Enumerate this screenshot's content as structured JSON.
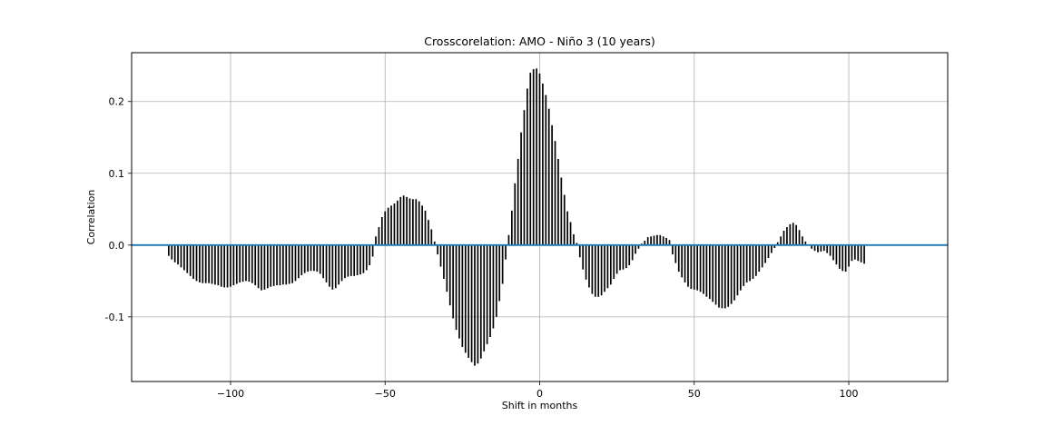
{
  "chart_data": {
    "type": "bar",
    "title": "Crosscorelation: AMO - Niño 3 (10 years)",
    "xlabel": "Shift in months",
    "ylabel": "Correlation",
    "xlim": [
      -132,
      132
    ],
    "ylim": [
      -0.19,
      0.268
    ],
    "xticks": [
      -100,
      -50,
      0,
      50,
      100
    ],
    "xtick_labels": [
      "−100",
      "−50",
      "0",
      "50",
      "100"
    ],
    "yticks": [
      -0.1,
      0.0,
      0.1,
      0.2
    ],
    "ytick_labels": [
      "-0.1",
      "0.0",
      "0.1",
      "0.2"
    ],
    "grid": true,
    "bar_color": "#000000",
    "baseline_color": "#1f77b4",
    "grid_color": "#b0b0b0",
    "x_start": -120,
    "values": [
      -0.015,
      -0.02,
      -0.024,
      -0.027,
      -0.031,
      -0.035,
      -0.039,
      -0.043,
      -0.047,
      -0.05,
      -0.052,
      -0.053,
      -0.053,
      -0.053,
      -0.054,
      -0.055,
      -0.056,
      -0.058,
      -0.059,
      -0.059,
      -0.058,
      -0.056,
      -0.054,
      -0.052,
      -0.051,
      -0.05,
      -0.051,
      -0.053,
      -0.056,
      -0.06,
      -0.063,
      -0.062,
      -0.06,
      -0.058,
      -0.057,
      -0.056,
      -0.056,
      -0.055,
      -0.055,
      -0.054,
      -0.053,
      -0.05,
      -0.046,
      -0.042,
      -0.039,
      -0.037,
      -0.036,
      -0.036,
      -0.037,
      -0.04,
      -0.046,
      -0.052,
      -0.058,
      -0.062,
      -0.06,
      -0.055,
      -0.05,
      -0.046,
      -0.044,
      -0.043,
      -0.043,
      -0.042,
      -0.041,
      -0.039,
      -0.035,
      -0.028,
      -0.016,
      0.012,
      0.025,
      0.039,
      0.047,
      0.052,
      0.055,
      0.058,
      0.062,
      0.067,
      0.069,
      0.067,
      0.065,
      0.064,
      0.064,
      0.061,
      0.055,
      0.048,
      0.035,
      0.022,
      0.005,
      -0.013,
      -0.03,
      -0.047,
      -0.065,
      -0.084,
      -0.102,
      -0.118,
      -0.13,
      -0.142,
      -0.15,
      -0.157,
      -0.163,
      -0.168,
      -0.165,
      -0.158,
      -0.148,
      -0.138,
      -0.128,
      -0.116,
      -0.1,
      -0.078,
      -0.054,
      -0.02,
      0.014,
      0.048,
      0.086,
      0.12,
      0.157,
      0.188,
      0.218,
      0.24,
      0.245,
      0.246,
      0.239,
      0.225,
      0.209,
      0.19,
      0.167,
      0.145,
      0.12,
      0.094,
      0.07,
      0.047,
      0.032,
      0.015,
      0.003,
      -0.017,
      -0.034,
      -0.048,
      -0.059,
      -0.068,
      -0.072,
      -0.072,
      -0.07,
      -0.065,
      -0.06,
      -0.055,
      -0.047,
      -0.04,
      -0.035,
      -0.034,
      -0.032,
      -0.028,
      -0.021,
      -0.012,
      -0.005,
      0.002,
      0.006,
      0.011,
      0.012,
      0.013,
      0.014,
      0.014,
      0.012,
      0.01,
      0.007,
      -0.013,
      -0.025,
      -0.037,
      -0.045,
      -0.052,
      -0.058,
      -0.061,
      -0.062,
      -0.063,
      -0.065,
      -0.068,
      -0.072,
      -0.075,
      -0.079,
      -0.083,
      -0.087,
      -0.088,
      -0.088,
      -0.086,
      -0.082,
      -0.077,
      -0.07,
      -0.063,
      -0.057,
      -0.052,
      -0.05,
      -0.047,
      -0.043,
      -0.037,
      -0.031,
      -0.025,
      -0.018,
      -0.011,
      -0.004,
      0.004,
      0.012,
      0.02,
      0.025,
      0.029,
      0.031,
      0.028,
      0.021,
      0.012,
      0.005,
      0.0,
      -0.005,
      -0.008,
      -0.01,
      -0.009,
      -0.008,
      -0.011,
      -0.015,
      -0.021,
      -0.027,
      -0.033,
      -0.036,
      -0.037,
      -0.03,
      -0.022,
      -0.02,
      -0.022,
      -0.024,
      -0.026
    ]
  }
}
